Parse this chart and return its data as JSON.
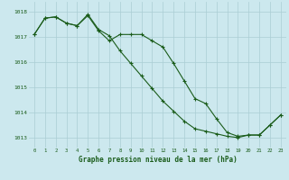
{
  "title": "Graphe pression niveau de la mer (hPa)",
  "bg_color": "#cce8ee",
  "grid_color": "#aacdd4",
  "line_color": "#1a5c1a",
  "xlim": [
    -0.5,
    23.5
  ],
  "ylim": [
    1012.6,
    1018.4
  ],
  "yticks": [
    1013,
    1014,
    1015,
    1016,
    1017,
    1018
  ],
  "xticks": [
    0,
    1,
    2,
    3,
    4,
    5,
    6,
    7,
    8,
    9,
    10,
    11,
    12,
    13,
    14,
    15,
    16,
    17,
    18,
    19,
    20,
    21,
    22,
    23
  ],
  "series1_x": [
    0,
    1,
    2,
    3,
    4,
    5,
    6,
    7,
    8,
    9,
    10,
    11,
    12,
    13,
    14,
    15,
    16,
    17,
    18,
    19,
    20,
    21,
    22,
    23
  ],
  "series1_y": [
    1017.1,
    1017.75,
    1017.8,
    1017.55,
    1017.45,
    1017.85,
    1017.25,
    1016.85,
    1017.1,
    1017.1,
    1017.1,
    1016.85,
    1016.6,
    1015.95,
    1015.25,
    1014.55,
    1014.35,
    1013.75,
    1013.2,
    1013.05,
    1013.1,
    1013.1,
    1013.5,
    1013.9
  ],
  "series2_x": [
    0,
    1,
    2,
    3,
    4,
    5,
    6,
    7,
    8,
    9,
    10,
    11,
    12,
    13,
    14,
    15,
    16,
    17,
    18,
    19,
    20,
    21,
    22,
    23
  ],
  "series2_y": [
    1017.1,
    1017.75,
    1017.8,
    1017.55,
    1017.45,
    1017.9,
    1017.3,
    1017.05,
    1016.45,
    1015.95,
    1015.45,
    1014.95,
    1014.45,
    1014.05,
    1013.65,
    1013.35,
    1013.25,
    1013.15,
    1013.05,
    1013.0,
    1013.1,
    1013.1,
    1013.5,
    1013.9
  ]
}
